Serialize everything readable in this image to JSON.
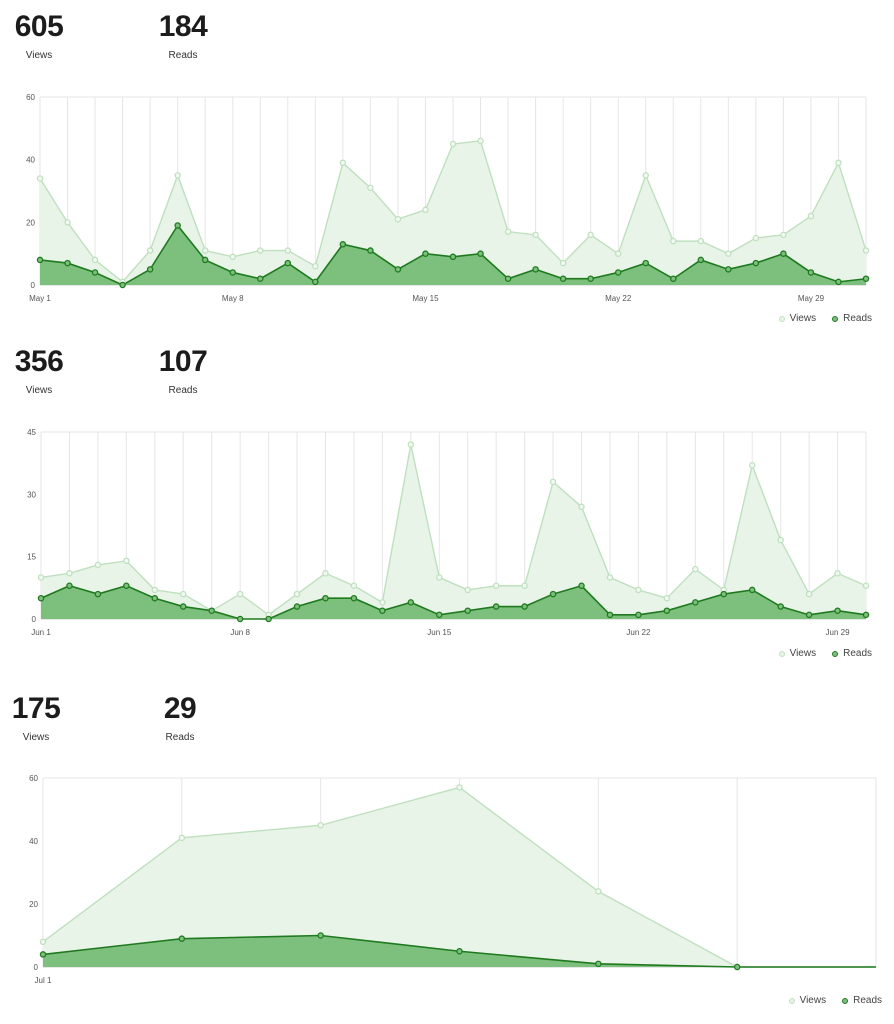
{
  "colors": {
    "views_line": "#bfe0bf",
    "views_fill": "#e8f4e8",
    "reads_line": "#1f7a1f",
    "reads_fill": "#7dbf7d",
    "grid": "#e6e6e6"
  },
  "legend": {
    "views": "Views",
    "reads": "Reads"
  },
  "sections": [
    {
      "views_total": "605",
      "views_label": "Views",
      "reads_total": "184",
      "reads_label": "Reads",
      "chart_data": {
        "type": "area",
        "x": [
          "May 1",
          "May 2",
          "May 3",
          "May 4",
          "May 5",
          "May 6",
          "May 7",
          "May 8",
          "May 9",
          "May 10",
          "May 11",
          "May 12",
          "May 13",
          "May 14",
          "May 15",
          "May 16",
          "May 17",
          "May 18",
          "May 19",
          "May 20",
          "May 21",
          "May 22",
          "May 23",
          "May 24",
          "May 25",
          "May 26",
          "May 27",
          "May 28",
          "May 29",
          "May 30",
          "May 31"
        ],
        "tick_labels": [
          {
            "i": 0,
            "label": "May 1"
          },
          {
            "i": 7,
            "label": "May 8"
          },
          {
            "i": 14,
            "label": "May 15"
          },
          {
            "i": 21,
            "label": "May 22"
          },
          {
            "i": 28,
            "label": "May 29"
          }
        ],
        "series": [
          {
            "name": "Views",
            "values": [
              34,
              20,
              8,
              1,
              11,
              35,
              11,
              9,
              11,
              11,
              6,
              39,
              31,
              21,
              24,
              45,
              46,
              17,
              16,
              7,
              16,
              10,
              35,
              14,
              14,
              10,
              15,
              16,
              22,
              39,
              11
            ]
          },
          {
            "name": "Reads",
            "values": [
              8,
              7,
              4,
              0,
              5,
              19,
              8,
              4,
              2,
              7,
              1,
              13,
              11,
              5,
              10,
              9,
              10,
              2,
              5,
              2,
              2,
              4,
              7,
              2,
              8,
              5,
              7,
              10,
              4,
              1,
              2
            ]
          }
        ],
        "yticks": [
          0,
          20,
          40,
          60
        ],
        "ylim": [
          0,
          60
        ],
        "grid": true,
        "legend": "bottom-right"
      }
    },
    {
      "views_total": "356",
      "views_label": "Views",
      "reads_total": "107",
      "reads_label": "Reads",
      "chart_data": {
        "type": "area",
        "x": [
          "Jun 1",
          "Jun 2",
          "Jun 3",
          "Jun 4",
          "Jun 5",
          "Jun 6",
          "Jun 7",
          "Jun 8",
          "Jun 9",
          "Jun 10",
          "Jun 11",
          "Jun 12",
          "Jun 13",
          "Jun 14",
          "Jun 15",
          "Jun 16",
          "Jun 17",
          "Jun 18",
          "Jun 19",
          "Jun 20",
          "Jun 21",
          "Jun 22",
          "Jun 23",
          "Jun 24",
          "Jun 25",
          "Jun 26",
          "Jun 27",
          "Jun 28",
          "Jun 29",
          "Jun 30"
        ],
        "tick_labels": [
          {
            "i": 0,
            "label": "Jun 1"
          },
          {
            "i": 7,
            "label": "Jun 8"
          },
          {
            "i": 14,
            "label": "Jun 15"
          },
          {
            "i": 21,
            "label": "Jun 22"
          },
          {
            "i": 28,
            "label": "Jun 29"
          }
        ],
        "series": [
          {
            "name": "Views",
            "values": [
              10,
              11,
              13,
              14,
              7,
              6,
              2,
              6,
              1,
              6,
              11,
              8,
              4,
              42,
              10,
              7,
              8,
              8,
              33,
              27,
              10,
              7,
              5,
              12,
              7,
              37,
              19,
              6,
              11,
              8
            ]
          },
          {
            "name": "Reads",
            "values": [
              5,
              8,
              6,
              8,
              5,
              3,
              2,
              0,
              0,
              3,
              5,
              5,
              2,
              4,
              1,
              2,
              3,
              3,
              6,
              8,
              1,
              1,
              2,
              4,
              6,
              7,
              3,
              1,
              2,
              1
            ]
          }
        ],
        "yticks": [
          0,
          15,
          30,
          45
        ],
        "ylim": [
          0,
          45
        ],
        "grid": true,
        "legend": "bottom-right"
      }
    },
    {
      "views_total": "175",
      "views_label": "Views",
      "reads_total": "29",
      "reads_label": "Reads",
      "chart_data": {
        "type": "area",
        "x": [
          "Jul 1",
          "Jul 2",
          "Jul 3",
          "Jul 4",
          "Jul 5",
          "Jul 6",
          "Jul 7"
        ],
        "tick_labels": [
          {
            "i": 0,
            "label": "Jul 1"
          }
        ],
        "series": [
          {
            "name": "Views",
            "values": [
              8,
              41,
              45,
              57,
              24,
              0,
              0
            ]
          },
          {
            "name": "Reads",
            "values": [
              4,
              9,
              10,
              5,
              1,
              0,
              0
            ]
          }
        ],
        "yticks": [
          0,
          20,
          40,
          60
        ],
        "ylim": [
          0,
          60
        ],
        "grid": true,
        "legend": "bottom-right"
      }
    }
  ]
}
